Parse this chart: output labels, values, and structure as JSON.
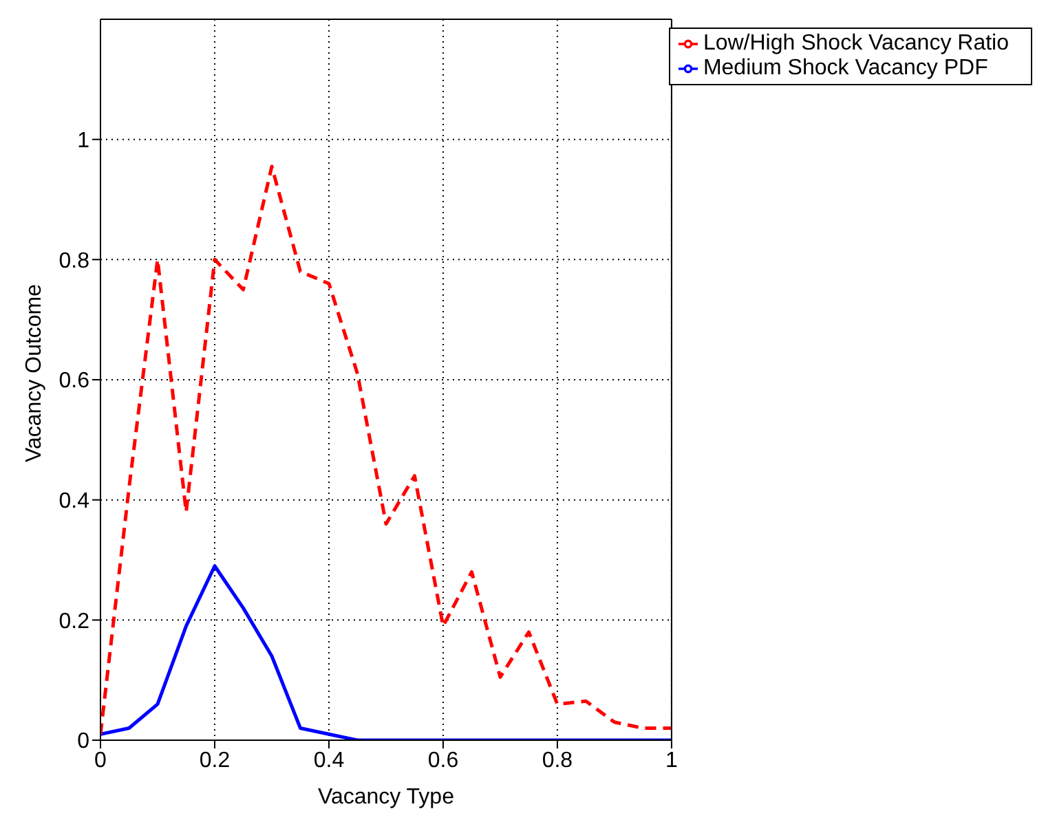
{
  "chart_data": {
    "type": "line",
    "xlabel": "Vacancy Type",
    "ylabel": "Vacancy Outcome",
    "x": [
      0,
      0.05,
      0.1,
      0.15,
      0.2,
      0.25,
      0.3,
      0.35,
      0.4,
      0.45,
      0.5,
      0.55,
      0.6,
      0.65,
      0.7,
      0.75,
      0.8,
      0.85,
      0.9,
      0.95,
      1
    ],
    "series": [
      {
        "name": "Medium Shock Vacancy PDF",
        "color": "#0000ff",
        "line_style": "solid",
        "values": [
          0.01,
          0.02,
          0.06,
          0.19,
          0.29,
          0.22,
          0.14,
          0.02,
          0.01,
          0,
          0,
          0,
          0,
          0,
          0,
          0,
          0,
          0,
          0,
          0,
          0
        ]
      },
      {
        "name": "Low/High Shock Vacancy Ratio",
        "color": "#ff0000",
        "line_style": "dashed",
        "values": [
          0.01,
          0.42,
          0.8,
          0.38,
          0.8,
          0.75,
          0.955,
          0.78,
          0.76,
          0.61,
          0.36,
          0.44,
          0.19,
          0.28,
          0.105,
          0.18,
          0.06,
          0.065,
          0.03,
          0.02,
          0.02
        ]
      }
    ],
    "xlim": [
      0,
      1
    ],
    "xticks": [
      0,
      0.2,
      0.4,
      0.6,
      0.8,
      1
    ],
    "ylim": [
      0,
      1.2
    ],
    "yticks": [
      0,
      0.2,
      0.4,
      0.6,
      0.8,
      1
    ],
    "grid": true,
    "legend": "top right",
    "marker": "none"
  }
}
